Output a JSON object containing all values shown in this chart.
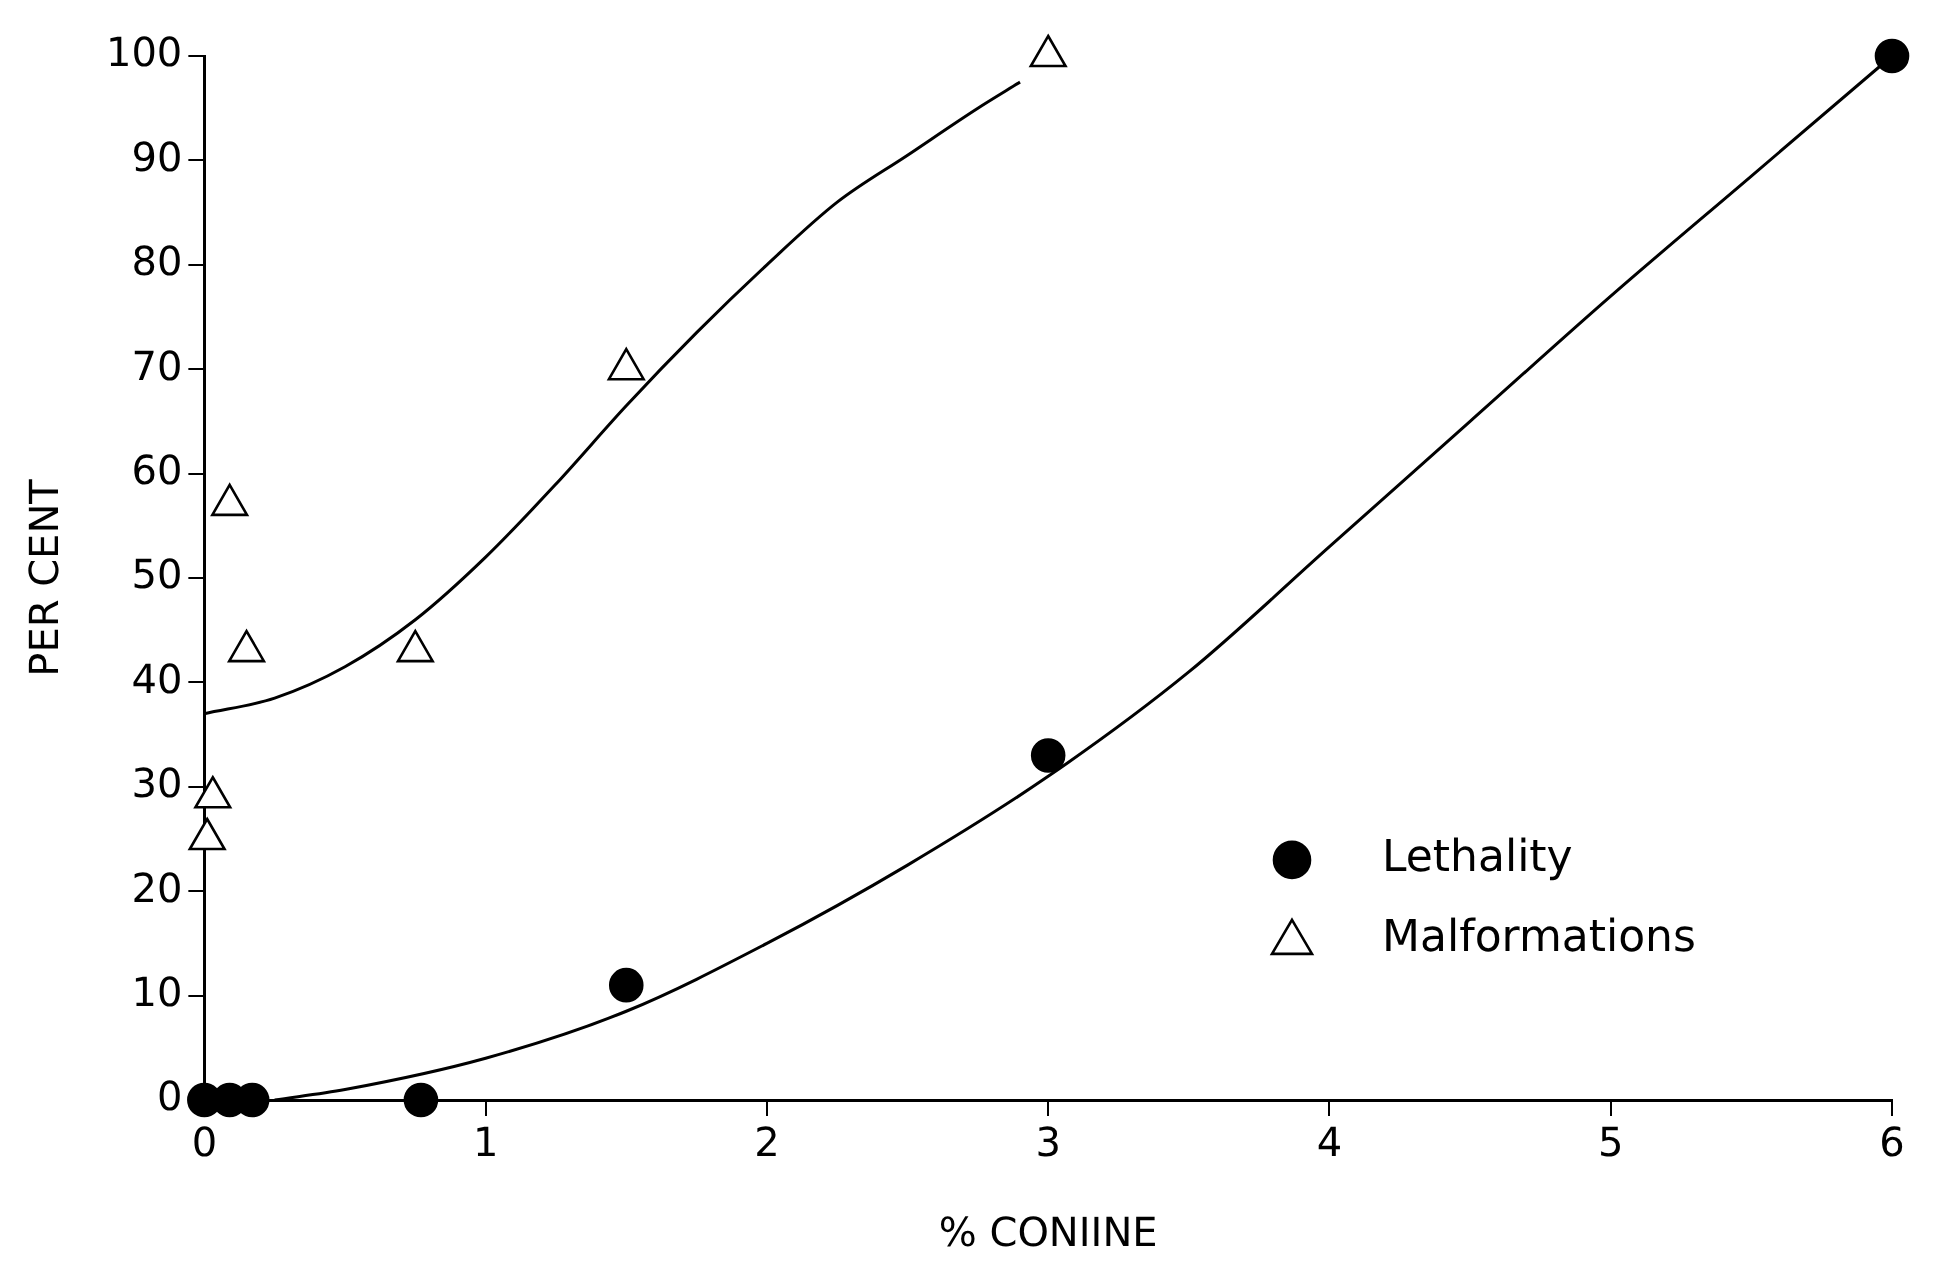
{
  "chart_data": {
    "type": "scatter",
    "xlabel": "% CONIINE",
    "ylabel": "PER CENT",
    "xlim": [
      0,
      6
    ],
    "xticks": [
      0,
      1,
      2,
      3,
      4,
      5,
      6
    ],
    "ylim": [
      0,
      100
    ],
    "yticks": [
      0,
      10,
      20,
      30,
      40,
      50,
      60,
      70,
      80,
      90,
      100
    ],
    "grid": false,
    "legend": "right",
    "series": [
      {
        "name": "Lethality",
        "marker": "circle",
        "color": "#000000",
        "x": [
          0,
          0.09,
          0.17,
          0.77,
          1.5,
          3,
          6
        ],
        "values": [
          0,
          0,
          0,
          0,
          11,
          33,
          100
        ]
      },
      {
        "name": "Malformations",
        "marker": "triangle",
        "color": "#000000",
        "x": [
          0.01,
          0.03,
          0.09,
          0.15,
          0.75,
          1.5,
          3
        ],
        "values": [
          25,
          29,
          57,
          43,
          43,
          70,
          100
        ]
      },
      {
        "type": "line",
        "marker": "none",
        "color": "#000000",
        "x": [
          0.25,
          0.5,
          1,
          1.5,
          2,
          2.5,
          3,
          3.5,
          4,
          4.5,
          5,
          5.5,
          6
        ],
        "values": [
          0,
          1,
          4,
          8.5,
          15,
          22.5,
          31,
          41,
          53,
          65,
          77,
          88.5,
          100
        ]
      },
      {
        "type": "line",
        "marker": "none",
        "color": "#000000",
        "x": [
          0,
          0.25,
          0.5,
          0.75,
          1,
          1.25,
          1.5,
          1.75,
          2,
          2.25,
          2.5,
          2.75,
          2.9
        ],
        "values": [
          37,
          38.5,
          41.5,
          46,
          52,
          59,
          66.5,
          73.5,
          80,
          86,
          90.5,
          95,
          97.5
        ]
      }
    ]
  }
}
